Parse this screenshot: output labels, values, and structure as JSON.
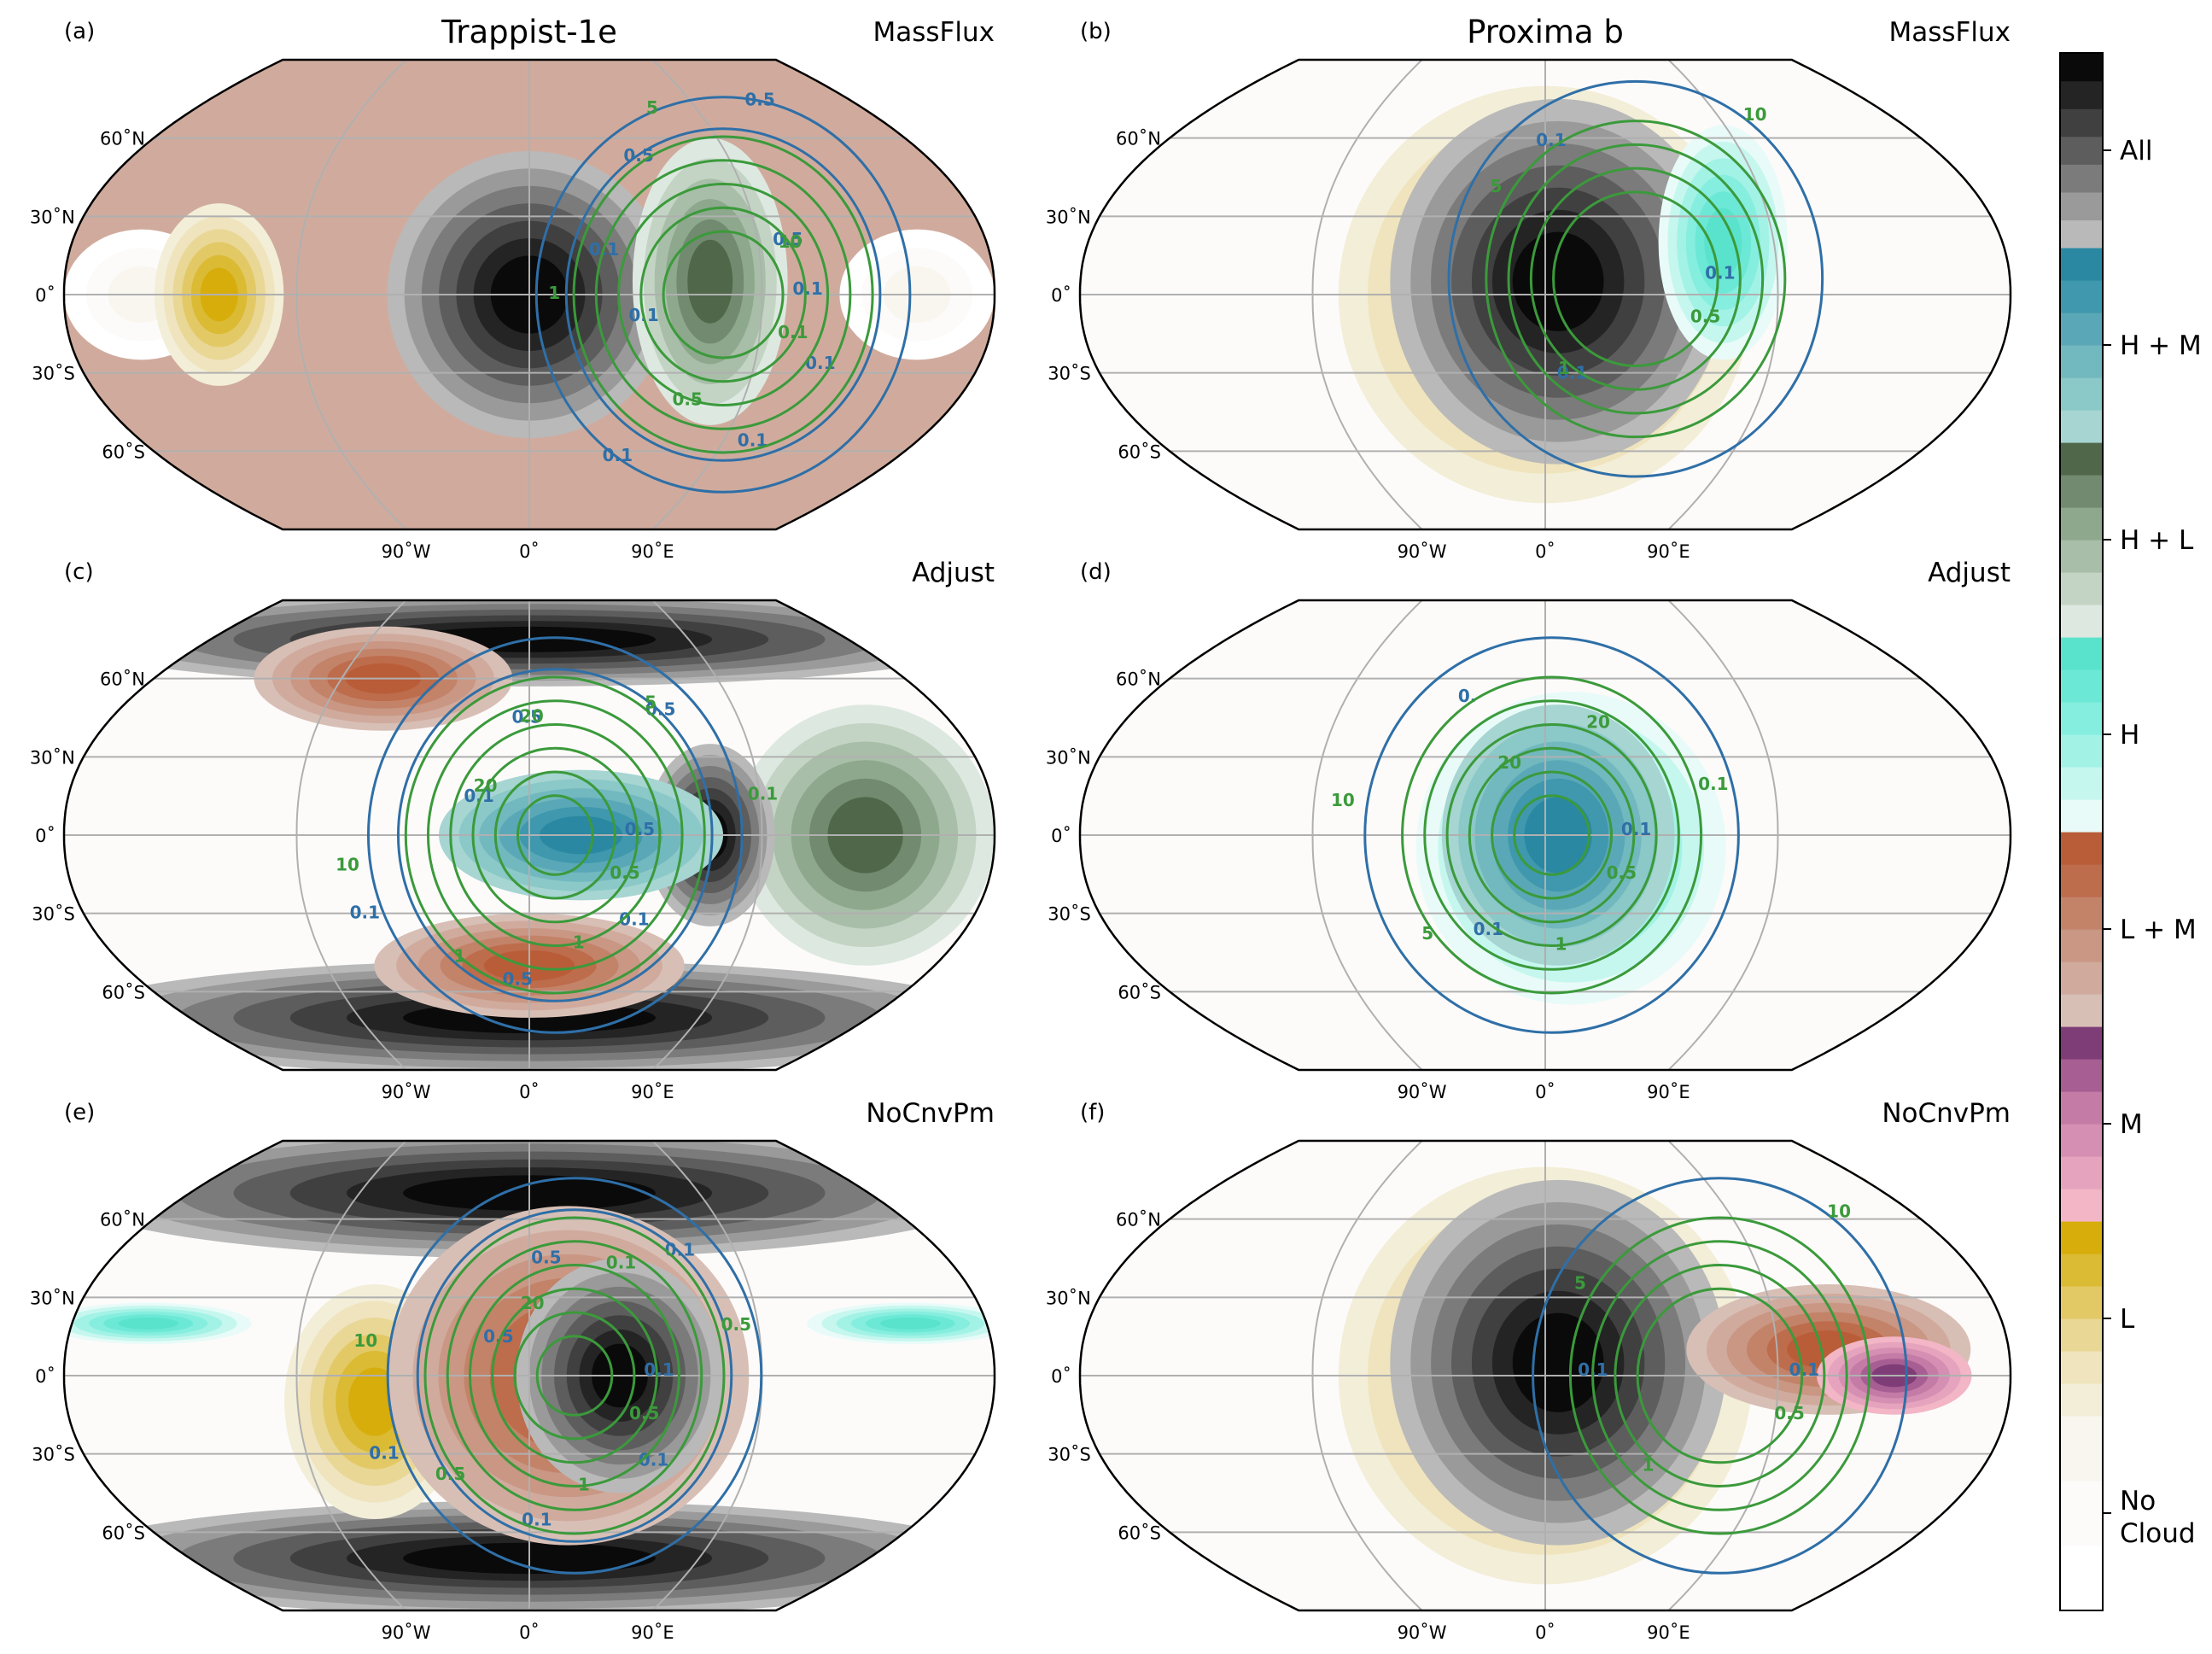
{
  "figure": {
    "columns": [
      {
        "title": "Trappist-1e"
      },
      {
        "title": "Proxima b"
      }
    ],
    "panels": [
      {
        "tag": "(a)",
        "scheme": "MassFlux"
      },
      {
        "tag": "(b)",
        "scheme": "MassFlux"
      },
      {
        "tag": "(c)",
        "scheme": "Adjust"
      },
      {
        "tag": "(d)",
        "scheme": "Adjust"
      },
      {
        "tag": "(e)",
        "scheme": "NoCnvPm"
      },
      {
        "tag": "(f)",
        "scheme": "NoCnvPm"
      }
    ],
    "lat_ticks": [
      "60˚N",
      "30˚N",
      "0˚",
      "30˚S",
      "60˚S"
    ],
    "lon_ticks": [
      "90˚W",
      "0˚",
      "90˚E"
    ],
    "colorbar": {
      "categories": [
        {
          "label": "No Cloud",
          "colors": [
            "#ffffff",
            "#fdfbfa",
            "#f9f6f0"
          ]
        },
        {
          "label": "L",
          "colors": [
            "#f3eed8",
            "#efe4bd",
            "#e9d796",
            "#e3c966",
            "#dbba34",
            "#d6ad0a"
          ]
        },
        {
          "label": "M",
          "colors": [
            "#f2b6c6",
            "#e6a3bd",
            "#d48fb2",
            "#c47ba6",
            "#a75e92",
            "#7f3d78"
          ]
        },
        {
          "label": "L + M",
          "colors": [
            "#d8bfb6",
            "#d0ab9d",
            "#c99784",
            "#c38369",
            "#bd6c4c",
            "#b95d38"
          ]
        },
        {
          "label": "H",
          "colors": [
            "#e9fbf8",
            "#c6f7ef",
            "#a3f2e6",
            "#86eede",
            "#6ce8d6",
            "#5ae3cc"
          ]
        },
        {
          "label": "H + L",
          "colors": [
            "#dde9e0",
            "#c3d4c4",
            "#a8bea8",
            "#8ea88d",
            "#728a6f",
            "#506849"
          ]
        },
        {
          "label": "H + M",
          "colors": [
            "#a6d5d2",
            "#8bc8c8",
            "#72b8bf",
            "#5aa8b7",
            "#3f98ad",
            "#2a88a2"
          ]
        },
        {
          "label": "All",
          "colors": [
            "#b9b9b9",
            "#9a9a9a",
            "#7b7b7b",
            "#5d5d5d",
            "#404040",
            "#242424",
            "#0a0a0a"
          ]
        }
      ]
    },
    "contour_series": [
      {
        "color": "#2f6fa7"
      },
      {
        "color": "#3b9a3b"
      }
    ]
  },
  "chart_data": [
    {
      "type": "heatmap",
      "panel": "(a)",
      "title": "Trappist-1e",
      "scheme": "MassFlux",
      "projection": "Robinson",
      "xlim": [
        -180,
        180
      ],
      "ylim": [
        -90,
        90
      ],
      "background": "L + M",
      "regions": [
        {
          "category": "All",
          "center": [
            0,
            0
          ],
          "radius": [
            55,
            55
          ]
        },
        {
          "category": "H + L",
          "center": [
            70,
            5
          ],
          "radius": [
            30,
            55
          ]
        },
        {
          "category": "No Cloud",
          "center": [
            -150,
            0
          ],
          "radius": [
            30,
            25
          ]
        },
        {
          "category": "L",
          "center": [
            -120,
            0
          ],
          "radius": [
            25,
            35
          ]
        },
        {
          "category": "No Cloud",
          "center": [
            150,
            0
          ],
          "radius": [
            30,
            25
          ]
        }
      ],
      "contours": [
        {
          "series": 0,
          "levels": [
            0.1,
            0.5
          ],
          "labels": [
            "0.1",
            "0.1",
            "0.1",
            "0.1",
            "0.1",
            "0.1",
            "0.5",
            "0.5",
            "0.5"
          ]
        },
        {
          "series": 1,
          "levels": [
            0.1,
            0.5,
            1,
            5,
            10
          ],
          "labels": [
            "0.1",
            "0.5",
            "1",
            "5",
            "10"
          ]
        }
      ]
    },
    {
      "type": "heatmap",
      "panel": "(b)",
      "title": "Proxima b",
      "scheme": "MassFlux",
      "projection": "Robinson",
      "xlim": [
        -180,
        180
      ],
      "ylim": [
        -90,
        90
      ],
      "background": "No Cloud",
      "regions": [
        {
          "category": "L",
          "center": [
            0,
            0
          ],
          "radius": [
            80,
            80
          ]
        },
        {
          "category": "All",
          "center": [
            5,
            5
          ],
          "radius": [
            65,
            70
          ]
        },
        {
          "category": "H",
          "center": [
            70,
            20
          ],
          "radius": [
            25,
            45
          ]
        }
      ],
      "contours": [
        {
          "series": 0,
          "levels": [
            0.1
          ],
          "labels": [
            "0.1",
            "0.1",
            "0.1"
          ]
        },
        {
          "series": 1,
          "levels": [
            0.5,
            1,
            5,
            10
          ],
          "labels": [
            "0.5",
            "1",
            "5",
            "10"
          ]
        }
      ]
    },
    {
      "type": "heatmap",
      "panel": "(c)",
      "title": "Trappist-1e",
      "scheme": "Adjust",
      "projection": "Robinson",
      "xlim": [
        -180,
        180
      ],
      "ylim": [
        -90,
        90
      ],
      "background": "No Cloud",
      "regions": [
        {
          "category": "All",
          "center": [
            0,
            75
          ],
          "radius": [
            180,
            18
          ]
        },
        {
          "category": "All",
          "center": [
            0,
            -70
          ],
          "radius": [
            180,
            22
          ]
        },
        {
          "category": "L + M",
          "center": [
            -70,
            60
          ],
          "radius": [
            50,
            20
          ]
        },
        {
          "category": "L + M",
          "center": [
            0,
            -50
          ],
          "radius": [
            60,
            20
          ]
        },
        {
          "category": "H + L",
          "center": [
            130,
            0
          ],
          "radius": [
            50,
            50
          ]
        },
        {
          "category": "All",
          "center": [
            70,
            0
          ],
          "radius": [
            25,
            35
          ]
        },
        {
          "category": "H + M",
          "center": [
            20,
            0
          ],
          "radius": [
            55,
            25
          ]
        }
      ],
      "contours": [
        {
          "series": 0,
          "levels": [
            0.1,
            0.5
          ],
          "labels": [
            "0.5",
            "0.1",
            "0.5",
            "0.1",
            "0.1",
            "0.5",
            "0.5"
          ]
        },
        {
          "series": 1,
          "levels": [
            0.1,
            0.5,
            1,
            5,
            10,
            20
          ],
          "labels": [
            "0.5",
            "1",
            "1",
            "10",
            "20",
            "20",
            "5",
            "0.1"
          ]
        }
      ]
    },
    {
      "type": "heatmap",
      "panel": "(d)",
      "title": "Proxima b",
      "scheme": "Adjust",
      "projection": "Robinson",
      "xlim": [
        -180,
        180
      ],
      "ylim": [
        -90,
        90
      ],
      "background": "No Cloud",
      "regions": [
        {
          "category": "H",
          "center": [
            10,
            -5
          ],
          "radius": [
            60,
            60
          ]
        },
        {
          "category": "H + M",
          "center": [
            5,
            0
          ],
          "radius": [
            45,
            50
          ]
        }
      ],
      "contours": [
        {
          "series": 0,
          "levels": [
            0.1
          ],
          "labels": [
            "0.1",
            "0.1",
            "0."
          ]
        },
        {
          "series": 1,
          "levels": [
            0.1,
            0.5,
            1,
            5,
            10,
            20
          ],
          "labels": [
            "0.5",
            "1",
            "5",
            "10",
            "20",
            "20",
            "0.1"
          ]
        }
      ]
    },
    {
      "type": "heatmap",
      "panel": "(e)",
      "title": "Trappist-1e",
      "scheme": "NoCnvPm",
      "projection": "Robinson",
      "xlim": [
        -180,
        180
      ],
      "ylim": [
        -90,
        90
      ],
      "background": "No Cloud",
      "regions": [
        {
          "category": "All",
          "center": [
            0,
            70
          ],
          "radius": [
            180,
            25
          ]
        },
        {
          "category": "All",
          "center": [
            0,
            -70
          ],
          "radius": [
            180,
            22
          ]
        },
        {
          "category": "H",
          "center": [
            -150,
            20
          ],
          "radius": [
            40,
            8
          ]
        },
        {
          "category": "H",
          "center": [
            150,
            20
          ],
          "radius": [
            40,
            8
          ]
        },
        {
          "category": "L",
          "center": [
            -60,
            -10
          ],
          "radius": [
            35,
            45
          ]
        },
        {
          "category": "L + M",
          "center": [
            15,
            0
          ],
          "radius": [
            70,
            65
          ]
        },
        {
          "category": "All",
          "center": [
            35,
            0
          ],
          "radius": [
            40,
            45
          ]
        }
      ],
      "contours": [
        {
          "series": 0,
          "levels": [
            0.1,
            0.5
          ],
          "labels": [
            "0.1",
            "0.1",
            "0.1",
            "0.1",
            "0.5",
            "0.5",
            "0.1"
          ]
        },
        {
          "series": 1,
          "levels": [
            0.1,
            0.5,
            1,
            5,
            10,
            20
          ],
          "labels": [
            "0.5",
            "1",
            "0.5",
            "10",
            "20",
            "0.1",
            "0.5"
          ]
        }
      ]
    },
    {
      "type": "heatmap",
      "panel": "(f)",
      "title": "Proxima b",
      "scheme": "NoCnvPm",
      "projection": "Robinson",
      "xlim": [
        -180,
        180
      ],
      "ylim": [
        -90,
        90
      ],
      "background": "No Cloud",
      "regions": [
        {
          "category": "L",
          "center": [
            0,
            0
          ],
          "radius": [
            80,
            80
          ]
        },
        {
          "category": "All",
          "center": [
            5,
            5
          ],
          "radius": [
            65,
            70
          ]
        },
        {
          "category": "L + M",
          "center": [
            110,
            10
          ],
          "radius": [
            55,
            25
          ]
        },
        {
          "category": "M",
          "center": [
            135,
            0
          ],
          "radius": [
            30,
            15
          ]
        }
      ],
      "contours": [
        {
          "series": 0,
          "levels": [
            0.1
          ],
          "labels": [
            "0.1",
            "0.1"
          ]
        },
        {
          "series": 1,
          "levels": [
            0.5,
            1,
            5,
            10
          ],
          "labels": [
            "0.5",
            "1",
            "5",
            "10"
          ]
        }
      ]
    }
  ]
}
